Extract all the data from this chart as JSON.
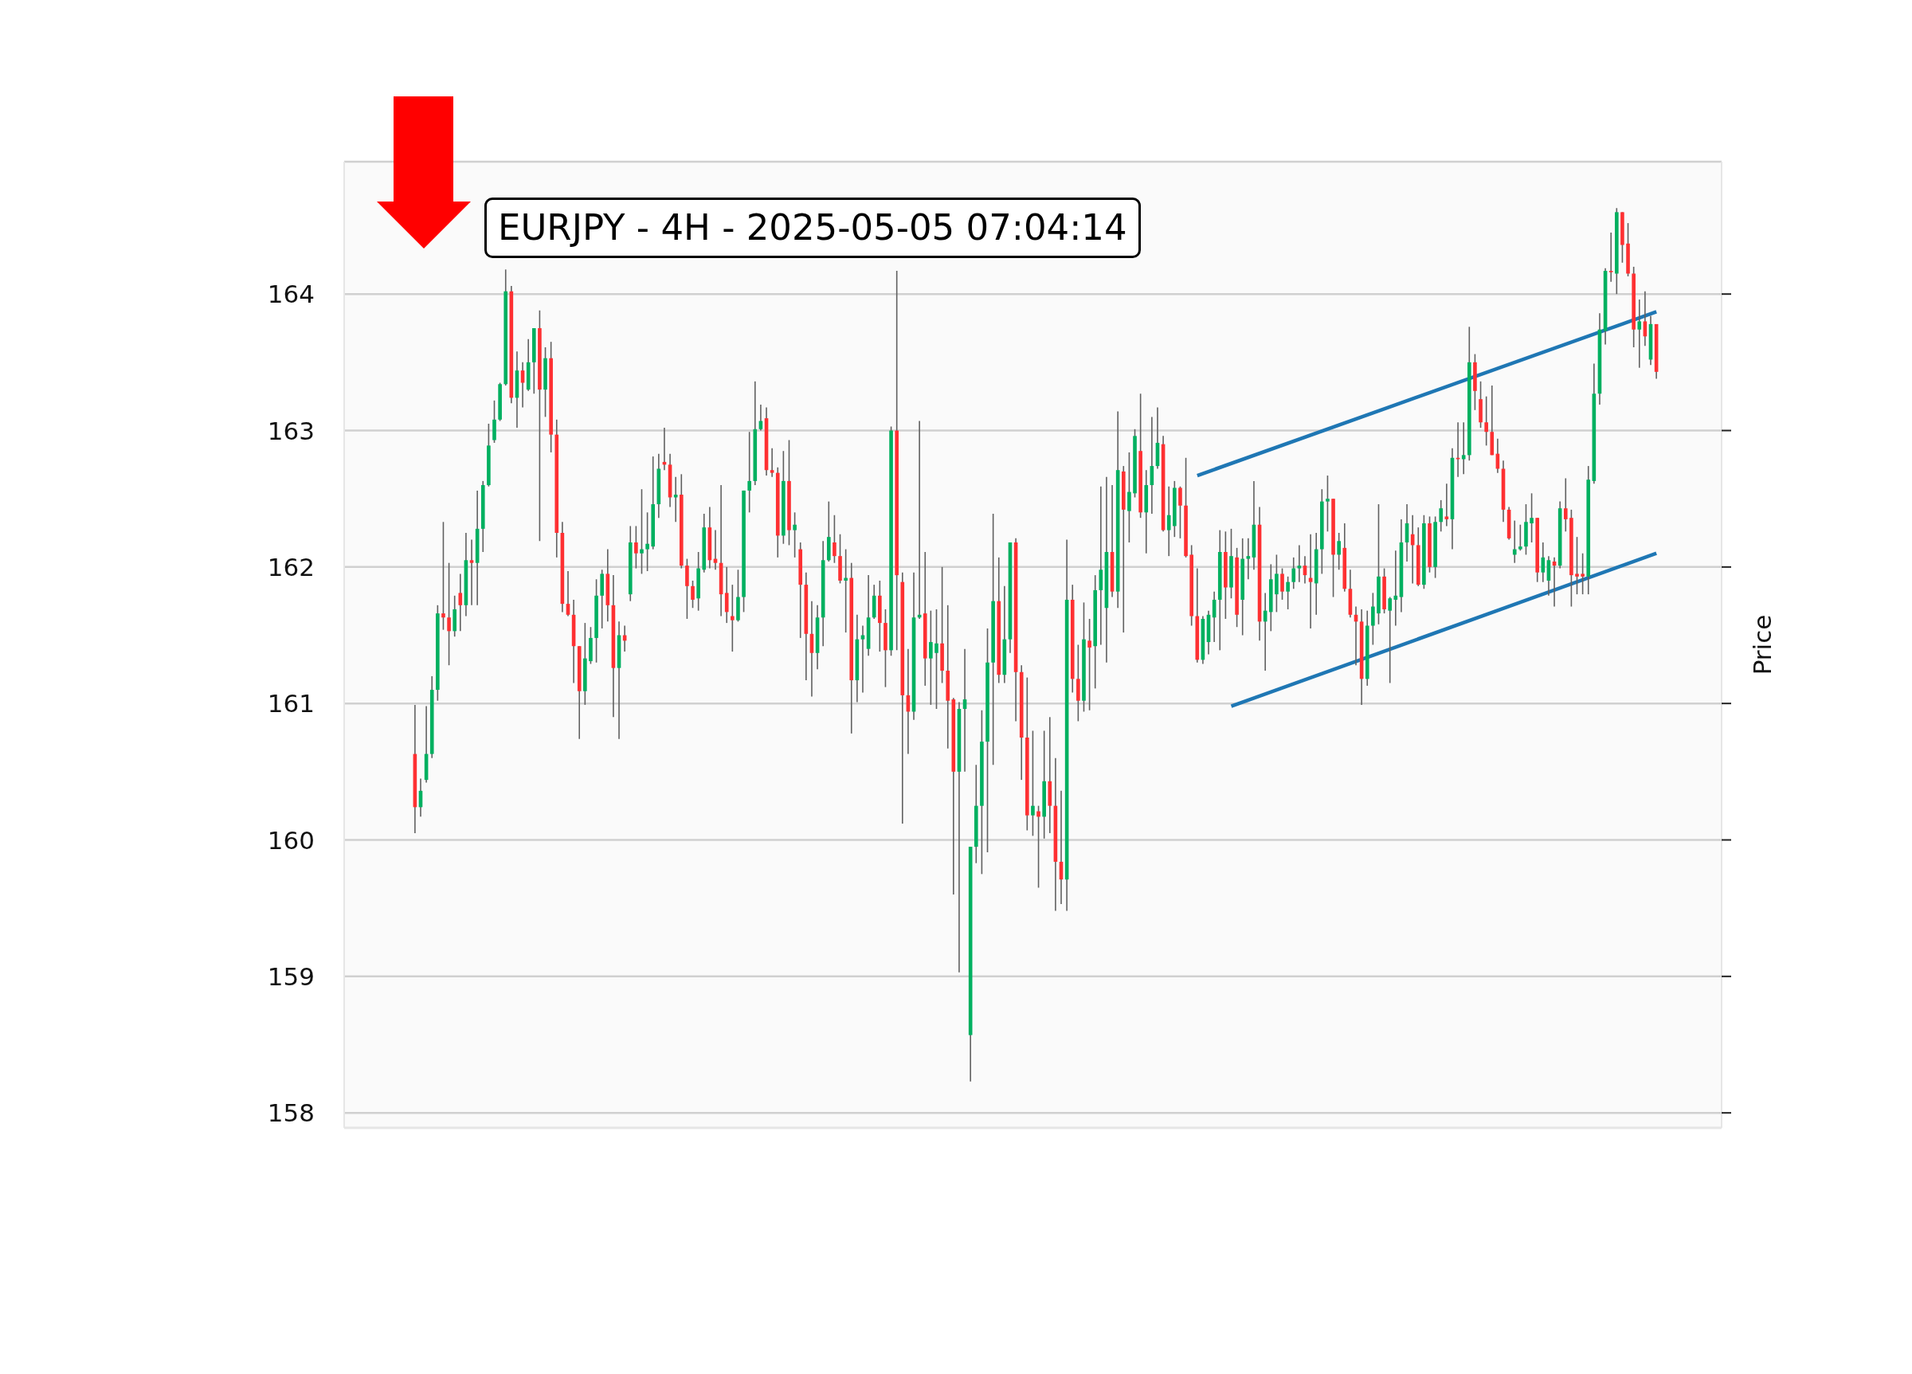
{
  "chart_data": {
    "type": "candlestick",
    "title": "EURJPY - 4H - 2025-05-05 07:04:14",
    "ylabel": "Price",
    "categories": [
      null,
      null,
      null,
      null,
      null,
      null,
      null,
      null,
      null,
      null,
      null,
      null,
      null,
      null,
      null,
      null,
      null,
      null,
      null,
      null,
      null,
      null,
      null,
      null,
      null,
      null,
      null,
      null,
      null,
      null,
      null,
      null,
      null,
      null,
      null,
      null,
      null,
      null,
      null,
      null,
      null,
      null,
      null,
      null,
      null,
      null,
      null,
      null,
      null,
      null,
      null,
      null,
      null,
      null,
      null,
      null,
      null,
      null,
      null,
      null,
      null,
      null,
      null,
      null,
      null,
      null,
      null,
      null,
      null,
      null,
      null,
      null,
      null,
      null,
      null,
      null,
      null,
      null,
      null,
      null,
      null,
      null,
      null,
      null,
      null,
      null,
      null,
      null,
      null,
      null,
      null,
      null,
      null,
      null,
      null,
      null,
      null,
      null,
      null,
      null,
      null,
      null,
      null,
      null,
      null,
      null,
      null,
      null,
      null,
      null,
      null,
      null,
      null,
      null,
      null,
      null,
      null,
      null,
      null,
      null,
      null,
      null,
      null,
      null,
      null,
      null,
      null,
      null,
      null,
      null,
      null,
      null,
      null,
      null,
      null,
      null,
      null,
      null,
      null,
      null,
      null,
      null,
      null,
      null,
      null,
      null,
      null,
      null,
      null,
      null,
      null,
      null,
      null,
      null,
      null,
      null,
      null,
      null,
      null,
      null,
      null,
      null,
      null,
      null,
      null,
      null,
      null,
      null,
      null,
      null,
      null,
      null,
      null,
      null,
      null,
      null,
      null,
      null,
      null,
      null,
      null,
      null,
      null,
      null,
      null,
      null,
      null,
      null,
      null,
      null,
      null,
      null,
      null,
      null,
      null,
      null,
      null,
      null,
      null,
      null,
      null,
      null,
      null,
      null,
      null,
      null,
      null,
      null,
      null,
      null,
      null,
      null,
      null,
      null,
      null,
      null,
      null,
      null,
      null,
      null,
      null,
      null,
      null,
      null,
      null,
      null,
      null,
      null,
      null,
      null,
      null,
      null,
      null,
      null,
      null,
      null,
      null,
      null,
      null,
      null,
      null,
      null,
      null
    ],
    "ohlc": [
      null,
      null,
      null,
      null,
      null,
      null,
      null,
      null,
      null,
      null,
      null,
      null,
      [
        160.63,
        160.99,
        160.05,
        160.24
      ],
      [
        160.24,
        160.45,
        160.17,
        160.36
      ],
      [
        160.44,
        160.98,
        160.42,
        160.63
      ],
      [
        160.63,
        161.2,
        160.6,
        161.1
      ],
      [
        161.1,
        161.72,
        161.02,
        161.66
      ],
      [
        161.66,
        162.33,
        161.54,
        161.63
      ],
      [
        161.63,
        162.03,
        161.28,
        161.53
      ],
      [
        161.53,
        161.79,
        161.49,
        161.69
      ],
      [
        161.81,
        161.95,
        161.53,
        161.72
      ],
      [
        161.72,
        162.25,
        161.64,
        162.05
      ],
      [
        162.05,
        162.2,
        161.72,
        162.03
      ],
      [
        162.03,
        162.56,
        161.72,
        162.28
      ],
      [
        162.28,
        162.63,
        162.11,
        162.6
      ],
      [
        162.6,
        163.05,
        162.59,
        162.89
      ],
      [
        162.93,
        163.22,
        162.91,
        163.08
      ],
      [
        163.08,
        163.35,
        163.07,
        163.34
      ],
      [
        163.34,
        164.18,
        163.33,
        164.02
      ],
      [
        164.02,
        164.06,
        163.2,
        163.24
      ],
      [
        163.24,
        163.58,
        163.02,
        163.44
      ],
      [
        163.44,
        163.5,
        163.17,
        163.35
      ],
      [
        163.3,
        163.67,
        163.29,
        163.5
      ],
      [
        163.5,
        163.75,
        163.27,
        163.75
      ],
      [
        163.75,
        163.88,
        162.19,
        163.3
      ],
      [
        163.3,
        163.61,
        163.1,
        163.53
      ],
      [
        163.53,
        163.65,
        162.84,
        162.97
      ],
      [
        162.97,
        163.08,
        162.07,
        162.25
      ],
      [
        162.25,
        162.33,
        161.67,
        161.73
      ],
      [
        161.73,
        161.97,
        161.64,
        161.65
      ],
      [
        161.65,
        161.76,
        161.15,
        161.42
      ],
      [
        161.42,
        161.42,
        160.74,
        161.09
      ],
      [
        161.09,
        161.59,
        160.99,
        161.33
      ],
      [
        161.31,
        161.56,
        161.29,
        161.48
      ],
      [
        161.48,
        161.91,
        161.3,
        161.79
      ],
      [
        161.79,
        161.98,
        161.55,
        161.95
      ],
      [
        161.95,
        162.13,
        161.6,
        161.72
      ],
      [
        161.72,
        161.94,
        160.9,
        161.26
      ],
      [
        161.26,
        161.6,
        160.74,
        161.5
      ],
      [
        161.5,
        161.57,
        161.38,
        161.46
      ],
      [
        161.8,
        162.3,
        161.75,
        162.18
      ],
      [
        162.18,
        162.3,
        161.99,
        162.1
      ],
      [
        162.1,
        162.57,
        161.95,
        162.13
      ],
      [
        162.13,
        162.4,
        161.97,
        162.17
      ],
      [
        162.15,
        162.81,
        162.13,
        162.46
      ],
      [
        162.46,
        162.83,
        162.36,
        162.72
      ],
      [
        162.77,
        163.02,
        162.71,
        162.75
      ],
      [
        162.75,
        162.83,
        162.44,
        162.51
      ],
      [
        162.51,
        162.66,
        162.33,
        162.53
      ],
      [
        162.53,
        162.68,
        161.99,
        162.01
      ],
      [
        162.01,
        162.06,
        161.62,
        161.86
      ],
      [
        161.86,
        161.9,
        161.7,
        161.76
      ],
      [
        161.77,
        162.11,
        161.68,
        161.99
      ],
      [
        161.98,
        162.39,
        161.96,
        162.29
      ],
      [
        162.29,
        162.44,
        161.99,
        162.05
      ],
      [
        162.06,
        162.27,
        161.98,
        162.03
      ],
      [
        162.03,
        162.6,
        161.64,
        161.8
      ],
      [
        161.81,
        162.0,
        161.59,
        161.67
      ],
      [
        161.64,
        161.87,
        161.38,
        161.61
      ],
      [
        161.61,
        161.98,
        161.6,
        161.78
      ],
      [
        161.78,
        162.56,
        161.67,
        162.56
      ],
      [
        162.56,
        162.99,
        162.4,
        162.63
      ],
      [
        162.63,
        163.36,
        162.6,
        163.01
      ],
      [
        163.01,
        163.19,
        163.0,
        163.07
      ],
      [
        163.09,
        163.17,
        162.67,
        162.71
      ],
      [
        162.71,
        162.87,
        162.66,
        162.69
      ],
      [
        162.69,
        162.73,
        162.07,
        162.23
      ],
      [
        162.23,
        162.85,
        162.17,
        162.63
      ],
      [
        162.63,
        162.93,
        162.16,
        162.27
      ],
      [
        162.27,
        162.4,
        162.07,
        162.31
      ],
      [
        162.13,
        162.18,
        161.48,
        161.87
      ],
      [
        161.87,
        161.96,
        161.17,
        161.51
      ],
      [
        161.51,
        161.75,
        161.05,
        161.37
      ],
      [
        161.37,
        161.72,
        161.25,
        161.63
      ],
      [
        161.63,
        162.19,
        161.42,
        162.05
      ],
      [
        162.05,
        162.48,
        162.04,
        162.22
      ],
      [
        162.18,
        162.38,
        162.03,
        162.08
      ],
      [
        162.08,
        162.24,
        161.88,
        161.9
      ],
      [
        161.9,
        162.13,
        161.52,
        161.92
      ],
      [
        161.92,
        162.03,
        160.78,
        161.17
      ],
      [
        161.17,
        161.65,
        161.01,
        161.47
      ],
      [
        161.47,
        161.57,
        161.08,
        161.5
      ],
      [
        161.4,
        161.94,
        161.35,
        161.63
      ],
      [
        161.63,
        161.87,
        161.62,
        161.79
      ],
      [
        161.79,
        161.9,
        161.38,
        161.59
      ],
      [
        161.59,
        161.69,
        161.12,
        161.39
      ],
      [
        161.39,
        163.03,
        161.35,
        163.0
      ],
      [
        163.0,
        164.17,
        161.39,
        161.94
      ],
      [
        161.89,
        161.96,
        160.12,
        161.06
      ],
      [
        161.06,
        161.4,
        160.63,
        160.94
      ],
      [
        160.94,
        161.96,
        160.88,
        161.63
      ],
      [
        161.63,
        163.07,
        161.62,
        161.65
      ],
      [
        161.66,
        162.11,
        161.13,
        161.33
      ],
      [
        161.33,
        161.68,
        160.99,
        161.45
      ],
      [
        161.37,
        161.69,
        160.96,
        161.44
      ],
      [
        161.44,
        162.0,
        161.15,
        161.24
      ],
      [
        161.24,
        161.72,
        160.67,
        161.02
      ],
      [
        161.03,
        161.04,
        159.6,
        160.5
      ],
      [
        160.5,
        161.01,
        159.03,
        160.96
      ],
      [
        160.96,
        161.4,
        160.5,
        161.03
      ],
      [
        158.57,
        159.95,
        158.23,
        159.95
      ],
      [
        159.95,
        160.55,
        159.83,
        160.25
      ],
      [
        160.25,
        160.95,
        159.75,
        160.72
      ],
      [
        160.72,
        161.55,
        159.91,
        161.3
      ],
      [
        161.3,
        162.39,
        160.55,
        161.75
      ],
      [
        161.75,
        162.07,
        161.15,
        161.21
      ],
      [
        161.21,
        161.86,
        161.15,
        161.47
      ],
      [
        161.47,
        162.18,
        161.37,
        162.18
      ],
      [
        162.18,
        162.21,
        160.87,
        161.23
      ],
      [
        161.23,
        161.28,
        160.44,
        160.75
      ],
      [
        160.75,
        161.19,
        160.07,
        160.18
      ],
      [
        160.18,
        160.8,
        160.03,
        160.25
      ],
      [
        160.21,
        160.25,
        159.65,
        160.17
      ],
      [
        160.17,
        160.8,
        160.01,
        160.43
      ],
      [
        160.43,
        160.9,
        160.05,
        160.25
      ],
      [
        160.25,
        160.6,
        159.48,
        159.84
      ],
      [
        159.84,
        160.36,
        159.53,
        159.71
      ],
      [
        159.71,
        162.2,
        159.48,
        161.76
      ],
      [
        161.76,
        161.87,
        161.08,
        161.18
      ],
      [
        161.18,
        161.43,
        160.87,
        161.02
      ],
      [
        161.02,
        161.74,
        160.94,
        161.47
      ],
      [
        161.46,
        161.62,
        160.95,
        161.41
      ],
      [
        161.42,
        161.94,
        161.11,
        161.83
      ],
      [
        161.83,
        162.59,
        161.43,
        161.98
      ],
      [
        161.7,
        162.66,
        161.3,
        162.11
      ],
      [
        162.11,
        162.6,
        161.78,
        161.82
      ],
      [
        161.82,
        163.14,
        161.7,
        162.71
      ],
      [
        162.7,
        162.74,
        161.52,
        162.42
      ],
      [
        162.41,
        162.84,
        162.18,
        162.55
      ],
      [
        162.54,
        163.01,
        162.51,
        162.96
      ],
      [
        162.85,
        163.27,
        162.36,
        162.4
      ],
      [
        162.4,
        162.71,
        162.1,
        162.6
      ],
      [
        162.6,
        163.1,
        162.39,
        162.74
      ],
      [
        162.74,
        163.17,
        162.72,
        162.91
      ],
      [
        162.9,
        162.96,
        162.26,
        162.27
      ],
      [
        162.27,
        162.59,
        162.08,
        162.38
      ],
      [
        162.3,
        162.63,
        162.22,
        162.58
      ],
      [
        162.58,
        162.59,
        162.21,
        162.45
      ],
      [
        162.45,
        162.8,
        162.07,
        162.08
      ],
      [
        162.09,
        162.16,
        161.57,
        161.64
      ],
      [
        161.64,
        161.99,
        161.3,
        161.32
      ],
      [
        161.32,
        161.64,
        161.29,
        161.62
      ],
      [
        161.45,
        161.68,
        161.36,
        161.65
      ],
      [
        161.63,
        161.82,
        161.45,
        161.76
      ],
      [
        161.76,
        162.27,
        161.39,
        162.11
      ],
      [
        162.11,
        162.26,
        161.62,
        161.85
      ],
      [
        161.85,
        162.28,
        161.77,
        162.08
      ],
      [
        162.07,
        162.14,
        161.56,
        161.65
      ],
      [
        161.76,
        162.21,
        161.5,
        162.06
      ],
      [
        162.06,
        162.21,
        161.91,
        162.08
      ],
      [
        162.07,
        162.63,
        161.98,
        162.31
      ],
      [
        162.31,
        162.44,
        161.46,
        161.6
      ],
      [
        161.6,
        161.81,
        161.24,
        161.68
      ],
      [
        161.67,
        162.02,
        161.53,
        161.91
      ],
      [
        161.8,
        162.09,
        161.67,
        161.95
      ],
      [
        161.95,
        161.99,
        161.76,
        161.82
      ],
      [
        161.82,
        161.93,
        161.69,
        161.89
      ],
      [
        161.89,
        162.07,
        161.84,
        161.99
      ],
      [
        161.99,
        162.16,
        161.89,
        162.01
      ],
      [
        162.01,
        162.08,
        161.88,
        161.94
      ],
      [
        161.92,
        162.24,
        161.55,
        161.89
      ],
      [
        161.88,
        162.25,
        161.65,
        162.13
      ],
      [
        162.13,
        162.57,
        161.95,
        162.48
      ],
      [
        162.48,
        162.67,
        162.26,
        162.5
      ],
      [
        162.5,
        162.5,
        161.78,
        162.09
      ],
      [
        162.09,
        162.25,
        161.98,
        162.19
      ],
      [
        162.14,
        162.32,
        161.82,
        161.84
      ],
      [
        161.84,
        161.98,
        161.63,
        161.65
      ],
      [
        161.65,
        161.71,
        161.28,
        161.6
      ],
      [
        161.6,
        161.69,
        160.99,
        161.18
      ],
      [
        161.18,
        161.68,
        161.13,
        161.57
      ],
      [
        161.57,
        161.81,
        161.43,
        161.71
      ],
      [
        161.66,
        162.46,
        161.58,
        161.93
      ],
      [
        161.93,
        161.99,
        161.66,
        161.69
      ],
      [
        161.68,
        161.78,
        161.15,
        161.77
      ],
      [
        161.76,
        162.12,
        161.57,
        161.79
      ],
      [
        161.78,
        162.35,
        161.67,
        162.18
      ],
      [
        162.18,
        162.46,
        162.04,
        162.32
      ],
      [
        162.24,
        162.38,
        161.88,
        162.16
      ],
      [
        162.16,
        162.29,
        161.86,
        161.87
      ],
      [
        161.87,
        162.38,
        161.84,
        162.32
      ],
      [
        162.32,
        162.37,
        161.96,
        162.0
      ],
      [
        162.0,
        162.37,
        161.92,
        162.33
      ],
      [
        162.33,
        162.49,
        162.26,
        162.43
      ],
      [
        162.37,
        162.61,
        162.3,
        162.35
      ],
      [
        162.35,
        162.87,
        162.13,
        162.8
      ],
      [
        162.8,
        163.06,
        162.66,
        162.79
      ],
      [
        162.79,
        163.06,
        162.68,
        162.82
      ],
      [
        162.82,
        163.76,
        162.78,
        163.5
      ],
      [
        163.5,
        163.56,
        163.15,
        163.29
      ],
      [
        163.23,
        163.36,
        163.02,
        163.06
      ],
      [
        163.06,
        163.25,
        162.89,
        162.99
      ],
      [
        162.99,
        163.33,
        162.82,
        162.82
      ],
      [
        162.83,
        162.94,
        162.69,
        162.72
      ],
      [
        162.72,
        162.78,
        162.33,
        162.42
      ],
      [
        162.42,
        162.44,
        162.2,
        162.21
      ],
      [
        162.09,
        162.34,
        162.03,
        162.13
      ],
      [
        162.13,
        162.31,
        162.12,
        162.15
      ],
      [
        162.15,
        162.46,
        162.09,
        162.33
      ],
      [
        162.32,
        162.54,
        162.18,
        162.36
      ],
      [
        162.36,
        162.36,
        161.89,
        161.96
      ],
      [
        161.96,
        162.18,
        161.89,
        162.07
      ],
      [
        161.9,
        162.08,
        161.79,
        162.05
      ],
      [
        162.04,
        162.07,
        161.71,
        162.01
      ],
      [
        162.01,
        162.48,
        161.99,
        162.43
      ],
      [
        162.43,
        162.65,
        162.26,
        162.35
      ],
      [
        162.36,
        162.42,
        161.71,
        161.94
      ],
      [
        161.95,
        162.22,
        161.8,
        161.93
      ],
      [
        161.95,
        162.1,
        161.8,
        161.93
      ],
      [
        161.93,
        162.74,
        161.8,
        162.64
      ],
      [
        162.63,
        163.49,
        162.61,
        163.27
      ],
      [
        163.27,
        163.86,
        163.19,
        163.74
      ],
      [
        163.73,
        164.19,
        163.63,
        164.17
      ],
      [
        164.17,
        164.45,
        164.09,
        164.16
      ],
      [
        164.15,
        164.63,
        164.0,
        164.6
      ],
      [
        164.6,
        164.6,
        164.23,
        164.36
      ],
      [
        164.37,
        164.52,
        164.13,
        164.15
      ],
      [
        164.15,
        164.2,
        163.61,
        163.74
      ],
      [
        163.74,
        163.96,
        163.46,
        163.8
      ],
      [
        163.8,
        164.02,
        163.62,
        163.69
      ],
      [
        163.52,
        163.84,
        163.48,
        163.78
      ],
      [
        163.78,
        163.78,
        163.38,
        163.43
      ],
      null,
      null,
      null,
      null,
      null,
      null,
      null,
      null,
      null,
      null,
      null
    ],
    "colors": [
      null,
      null,
      null,
      null,
      null,
      null,
      null,
      null,
      null,
      null,
      null,
      null,
      "#fe3032",
      "#00b060",
      "#00b060",
      "#00b060",
      "#00b060",
      "#fe3032",
      "#fe3032",
      "#00b060",
      "#fe3032",
      "#00b060",
      "#fe3032",
      "#00b060",
      "#00b060",
      "#00b060",
      "#00b060",
      "#00b060",
      "#00b060",
      "#fe3032",
      "#00b060",
      "#fe3032",
      "#00b060",
      "#00b060",
      "#fe3032",
      "#00b060",
      "#fe3032",
      "#fe3032",
      "#fe3032",
      "#fe3032",
      "#fe3032",
      "#fe3032",
      "#00b060",
      "#00b060",
      "#00b060",
      "#00b060",
      "#fe3032",
      "#fe3032",
      "#00b060",
      "#fe3032",
      "#00b060",
      "#fe3032",
      "#00b060",
      "#00b060",
      "#00b060",
      "#00b060",
      "#fe3032",
      "#fe3032",
      "#00b060",
      "#fe3032",
      "#fe3032",
      "#fe3032",
      "#00b060",
      "#00b060",
      "#fe3032",
      "#fe3032",
      "#fe3032",
      "#fe3032",
      "#fe3032",
      "#00b060",
      "#00b060",
      "#00b060",
      "#00b060",
      "#00b060",
      "#fe3032",
      "#fe3032",
      "#fe3032",
      "#00b060",
      "#fe3032",
      "#00b060",
      "#fe3032",
      "#fe3032",
      "#fe3032",
      "#00b060",
      "#00b060",
      "#00b060",
      "#fe3032",
      "#fe3032",
      "#00b060",
      "#fe3032",
      "#00b060",
      "#00b060",
      "#00b060",
      "#00b060",
      "#fe3032",
      "#fe3032",
      "#00b060",
      "#fe3032",
      "#fe3032",
      "#fe3032",
      "#00b060",
      "#00b060",
      "#fe3032",
      "#00b060",
      "#00b060",
      "#fe3032",
      "#fe3032",
      "#fe3032",
      "#00b060",
      "#00b060",
      "#00b060",
      "#00b060",
      "#00b060",
      "#00b060",
      "#00b060",
      "#fe3032",
      "#00b060",
      "#00b060",
      "#fe3032",
      "#fe3032",
      "#fe3032",
      "#00b060",
      "#fe3032",
      "#00b060",
      "#fe3032",
      "#fe3032",
      "#fe3032",
      "#00b060",
      "#fe3032",
      "#fe3032",
      "#00b060",
      "#fe3032",
      "#00b060",
      "#00b060",
      "#00b060",
      "#fe3032",
      "#00b060",
      "#fe3032",
      "#00b060",
      "#00b060",
      "#fe3032",
      "#00b060",
      "#00b060",
      "#00b060",
      "#fe3032",
      "#00b060",
      "#00b060",
      "#fe3032",
      "#fe3032",
      "#fe3032",
      "#fe3032",
      "#00b060",
      "#00b060",
      "#00b060",
      "#00b060",
      "#fe3032",
      "#00b060",
      "#fe3032",
      "#00b060",
      "#00b060",
      "#00b060",
      "#fe3032",
      "#00b060",
      "#00b060",
      "#00b060",
      "#fe3032",
      "#00b060",
      "#00b060",
      "#00b060",
      "#fe3032",
      "#fe3032",
      "#00b060",
      "#00b060",
      "#00b060",
      "#fe3032",
      "#00b060",
      "#fe3032",
      "#fe3032",
      "#fe3032",
      "#fe3032",
      "#00b060",
      "#00b060",
      "#00b060",
      "#fe3032",
      "#00b060",
      "#00b060",
      "#00b060",
      "#00b060",
      "#fe3032",
      "#fe3032",
      "#00b060",
      "#fe3032",
      "#00b060",
      "#00b060",
      "#fe3032",
      "#00b060",
      "#fe3032",
      "#00b060",
      "#00b060",
      "#fe3032",
      "#fe3032",
      "#fe3032",
      "#fe3032",
      "#fe3032",
      "#fe3032",
      "#fe3032",
      "#00b060",
      "#00b060",
      "#00b060",
      "#00b060",
      "#fe3032",
      "#00b060",
      "#00b060",
      "#fe3032",
      "#00b060",
      "#fe3032",
      "#fe3032",
      "#fe3032",
      "#fe3032",
      "#00b060",
      "#00b060",
      "#00b060",
      "#00b060",
      "#fe3032",
      "#00b060",
      "#fe3032",
      "#fe3032",
      "#fe3032",
      "#00b060",
      "#fe3032",
      "#00b060",
      "#fe3032",
      null,
      null,
      null,
      null,
      null,
      null,
      null,
      null,
      null,
      null,
      null
    ],
    "series": [
      {
        "type": "line",
        "color": "#1f77b4",
        "values": [
          null,
          null,
          null,
          null,
          null,
          null,
          null,
          null,
          null,
          null,
          null,
          null,
          null,
          null,
          null,
          null,
          null,
          null,
          null,
          null,
          null,
          null,
          null,
          null,
          null,
          null,
          null,
          null,
          null,
          null,
          null,
          null,
          null,
          null,
          null,
          null,
          null,
          null,
          null,
          null,
          null,
          null,
          null,
          null,
          null,
          null,
          null,
          null,
          null,
          null,
          null,
          null,
          null,
          null,
          null,
          null,
          null,
          null,
          null,
          null,
          null,
          null,
          null,
          null,
          null,
          null,
          null,
          null,
          null,
          null,
          null,
          null,
          null,
          null,
          null,
          null,
          null,
          null,
          null,
          null,
          null,
          null,
          null,
          null,
          null,
          null,
          null,
          null,
          null,
          null,
          null,
          null,
          null,
          null,
          null,
          null,
          null,
          null,
          null,
          null,
          null,
          null,
          null,
          null,
          null,
          null,
          null,
          null,
          null,
          null,
          null,
          null,
          null,
          null,
          null,
          null,
          null,
          null,
          null,
          null,
          null,
          null,
          null,
          null,
          null,
          null,
          null,
          null,
          null,
          null,
          null,
          null,
          null,
          null,
          null,
          null,
          null,
          null,
          null,
          null,
          null,
          null,
          null,
          null,
          null,
          null,
          null,
          null,
          null,
          null,
          162.67,
          null,
          null,
          null,
          null,
          null,
          null,
          null,
          null,
          null,
          null,
          null,
          null,
          null,
          null,
          null,
          null,
          null,
          null,
          null,
          null,
          null,
          null,
          null,
          null,
          null,
          null,
          null,
          null,
          null,
          null,
          null,
          null,
          null,
          null,
          null,
          null,
          null,
          null,
          null,
          null,
          null,
          null,
          null,
          null,
          null,
          null,
          null,
          null,
          null,
          null,
          null,
          null,
          null,
          null,
          null,
          null,
          null,
          null,
          null,
          null,
          null,
          null,
          null,
          null,
          null,
          null,
          null,
          null,
          null,
          null,
          null,
          null,
          null,
          null,
          null,
          null,
          null,
          null,
          null,
          null,
          163.87,
          null,
          null,
          null,
          null,
          null,
          null,
          null,
          null,
          null,
          null,
          null
        ]
      },
      {
        "type": "line",
        "color": "#1f77b4",
        "values": [
          null,
          null,
          null,
          null,
          null,
          null,
          null,
          null,
          null,
          null,
          null,
          null,
          null,
          null,
          null,
          null,
          null,
          null,
          null,
          null,
          null,
          null,
          null,
          null,
          null,
          null,
          null,
          null,
          null,
          null,
          null,
          null,
          null,
          null,
          null,
          null,
          null,
          null,
          null,
          null,
          null,
          null,
          null,
          null,
          null,
          null,
          null,
          null,
          null,
          null,
          null,
          null,
          null,
          null,
          null,
          null,
          null,
          null,
          null,
          null,
          null,
          null,
          null,
          null,
          null,
          null,
          null,
          null,
          null,
          null,
          null,
          null,
          null,
          null,
          null,
          null,
          null,
          null,
          null,
          null,
          null,
          null,
          null,
          null,
          null,
          null,
          null,
          null,
          null,
          null,
          null,
          null,
          null,
          null,
          null,
          null,
          null,
          null,
          null,
          null,
          null,
          null,
          null,
          null,
          null,
          null,
          null,
          null,
          null,
          null,
          null,
          null,
          null,
          null,
          null,
          null,
          null,
          null,
          null,
          null,
          null,
          null,
          null,
          null,
          null,
          null,
          null,
          null,
          null,
          null,
          null,
          null,
          null,
          null,
          null,
          null,
          null,
          null,
          null,
          null,
          null,
          null,
          null,
          null,
          null,
          null,
          null,
          null,
          null,
          null,
          null,
          null,
          null,
          null,
          null,
          null,
          160.98,
          null,
          null,
          null,
          null,
          null,
          null,
          null,
          null,
          null,
          null,
          null,
          null,
          null,
          null,
          null,
          null,
          null,
          null,
          null,
          null,
          null,
          null,
          null,
          null,
          null,
          null,
          null,
          null,
          null,
          null,
          null,
          null,
          null,
          null,
          null,
          null,
          null,
          null,
          null,
          null,
          null,
          null,
          null,
          null,
          null,
          null,
          null,
          null,
          null,
          null,
          null,
          null,
          null,
          null,
          null,
          null,
          null,
          null,
          null,
          null,
          null,
          null,
          null,
          null,
          null,
          null,
          null,
          null,
          null,
          null,
          null,
          null,
          null,
          null,
          162.1,
          null,
          null,
          null,
          null,
          null,
          null,
          null,
          null,
          null,
          null,
          null
        ]
      }
    ],
    "ylim": [
      157.89,
      164.97
    ],
    "yticks": [
      158,
      159,
      160,
      161,
      162,
      163,
      164
    ],
    "grid": "y",
    "tick_labels": "y"
  }
}
